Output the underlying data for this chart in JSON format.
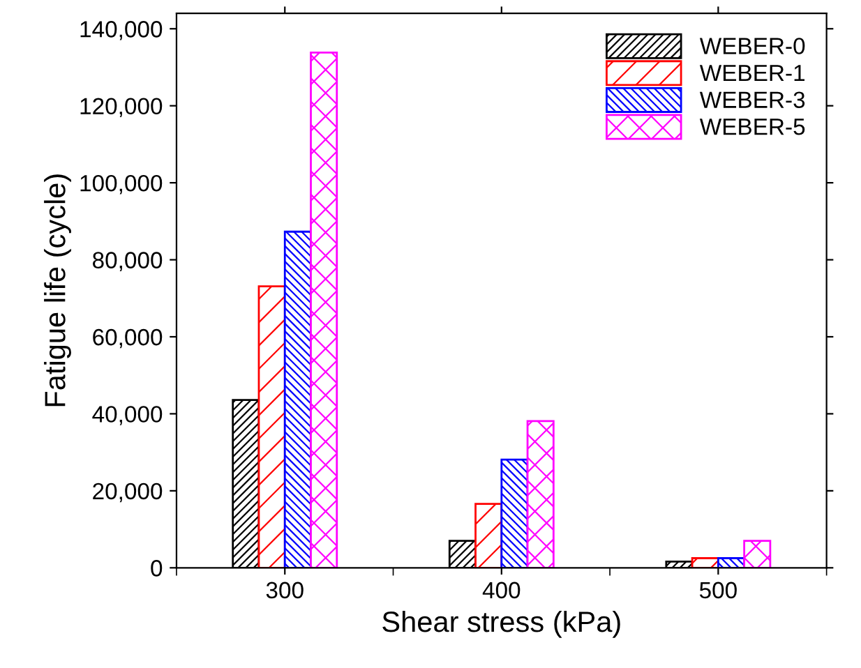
{
  "chart_data": {
    "type": "bar",
    "xlabel": "Shear stress (kPa)",
    "ylabel": "Fatigue life (cycle)",
    "categories": [
      "300",
      "400",
      "500"
    ],
    "series": [
      {
        "name": "WEBER-0",
        "color": "#000000",
        "values": [
          43600,
          7000,
          1600
        ]
      },
      {
        "name": "WEBER-1",
        "color": "#ff0000",
        "values": [
          73100,
          16600,
          2500
        ]
      },
      {
        "name": "WEBER-3",
        "color": "#0000ff",
        "values": [
          87300,
          28100,
          2500
        ]
      },
      {
        "name": "WEBER-5",
        "color": "#ff00ff",
        "values": [
          133800,
          38100,
          7000
        ]
      }
    ],
    "ylim": [
      0,
      144000
    ],
    "yticks": [
      {
        "value": 0,
        "label": "0"
      },
      {
        "value": 20000,
        "label": "20,000"
      },
      {
        "value": 40000,
        "label": "40,000"
      },
      {
        "value": 60000,
        "label": "60,000"
      },
      {
        "value": 80000,
        "label": "80,000"
      },
      {
        "value": 100000,
        "label": "100,000"
      },
      {
        "value": 120000,
        "label": "120,000"
      },
      {
        "value": 140000,
        "label": "140,000"
      }
    ],
    "grid": false,
    "legend": "top right"
  }
}
